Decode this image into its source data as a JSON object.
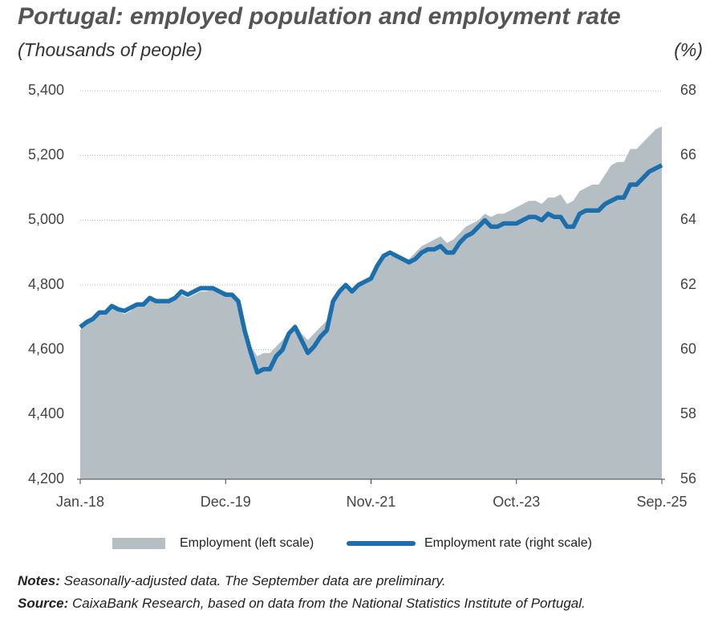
{
  "chart_data": {
    "type": "line",
    "title": "Portugal: employed population and employment rate",
    "subtitle": "(Thousands of people)",
    "y2_label": "(%)",
    "categories": [
      "Jan.-18",
      null,
      null,
      null,
      null,
      null,
      null,
      null,
      null,
      null,
      null,
      null,
      null,
      null,
      null,
      null,
      null,
      null,
      null,
      null,
      null,
      null,
      null,
      "Dec.-19",
      null,
      null,
      null,
      null,
      null,
      null,
      null,
      null,
      null,
      null,
      null,
      null,
      null,
      null,
      null,
      null,
      null,
      null,
      null,
      null,
      null,
      null,
      "Nov.-21",
      null,
      null,
      null,
      null,
      null,
      null,
      null,
      null,
      null,
      null,
      null,
      null,
      null,
      null,
      null,
      null,
      null,
      null,
      null,
      null,
      null,
      null,
      "Oct.-23",
      null,
      null,
      null,
      null,
      null,
      null,
      null,
      null,
      null,
      null,
      null,
      null,
      null,
      null,
      null,
      null,
      null,
      null,
      null,
      null,
      null,
      null,
      "Sep.-25"
    ],
    "series": [
      {
        "name": "Employment (left scale)",
        "type": "area",
        "color": "#b4bec3",
        "values": [
          4660,
          4690,
          4700,
          4710,
          4710,
          4730,
          4720,
          4710,
          4720,
          4740,
          4740,
          4760,
          4750,
          4750,
          4750,
          4760,
          4770,
          4760,
          4770,
          4780,
          4780,
          4790,
          4780,
          4780,
          4770,
          4760,
          4680,
          4610,
          4580,
          4590,
          4590,
          4610,
          4630,
          4660,
          4680,
          4650,
          4630,
          4650,
          4670,
          4690,
          4750,
          4780,
          4800,
          4790,
          4800,
          4810,
          4830,
          4860,
          4890,
          4890,
          4890,
          4880,
          4880,
          4900,
          4920,
          4930,
          4940,
          4950,
          4930,
          4940,
          4960,
          4980,
          4990,
          5000,
          5020,
          5010,
          5020,
          5020,
          5030,
          5040,
          5050,
          5060,
          5060,
          5050,
          5070,
          5070,
          5080,
          5050,
          5060,
          5090,
          5100,
          5110,
          5110,
          5140,
          5170,
          5180,
          5180,
          5220,
          5220,
          5240,
          5260,
          5280,
          5290
        ]
      },
      {
        "name": "Employment rate (right scale)",
        "type": "line",
        "axis": "y2",
        "color": "#1b6fad",
        "values": [
          60.7,
          60.85,
          60.95,
          61.15,
          61.15,
          61.35,
          61.25,
          61.2,
          61.3,
          61.4,
          61.4,
          61.6,
          61.5,
          61.5,
          61.5,
          61.6,
          61.8,
          61.7,
          61.8,
          61.9,
          61.9,
          61.9,
          61.8,
          61.7,
          61.7,
          61.5,
          60.6,
          59.9,
          59.3,
          59.4,
          59.4,
          59.8,
          60.0,
          60.5,
          60.7,
          60.3,
          59.9,
          60.1,
          60.4,
          60.6,
          61.5,
          61.8,
          62.0,
          61.8,
          62.0,
          62.1,
          62.2,
          62.6,
          62.9,
          63.0,
          62.9,
          62.8,
          62.7,
          62.8,
          63.0,
          63.1,
          63.1,
          63.2,
          63.0,
          63.0,
          63.3,
          63.5,
          63.6,
          63.8,
          64.0,
          63.8,
          63.8,
          63.9,
          63.9,
          63.9,
          64.0,
          64.1,
          64.1,
          64.0,
          64.2,
          64.1,
          64.1,
          63.8,
          63.8,
          64.2,
          64.3,
          64.3,
          64.3,
          64.5,
          64.6,
          64.7,
          64.7,
          65.1,
          65.1,
          65.3,
          65.5,
          65.6,
          65.7
        ]
      }
    ],
    "ylim": [
      4200,
      5400
    ],
    "yticks": [
      {
        "value": 4200,
        "label": "4,200"
      },
      {
        "value": 4400,
        "label": "4,400"
      },
      {
        "value": 4600,
        "label": "4,600"
      },
      {
        "value": 4800,
        "label": "4,800"
      },
      {
        "value": 5000,
        "label": "5,000"
      },
      {
        "value": 5200,
        "label": "5,200"
      },
      {
        "value": 5400,
        "label": "5,400"
      }
    ],
    "y2lim": [
      56,
      68
    ],
    "y2ticks": [
      56,
      58,
      60,
      62,
      64,
      66,
      68
    ],
    "grid": true,
    "legend": "bottom",
    "notes": [
      {
        "label": "Notes:",
        "text": " Seasonally-adjusted data. The September data are preliminary."
      },
      {
        "label": "Source:",
        "text": " CaixaBank Research, based on data from the National Statistics Institute of Portugal."
      }
    ]
  }
}
